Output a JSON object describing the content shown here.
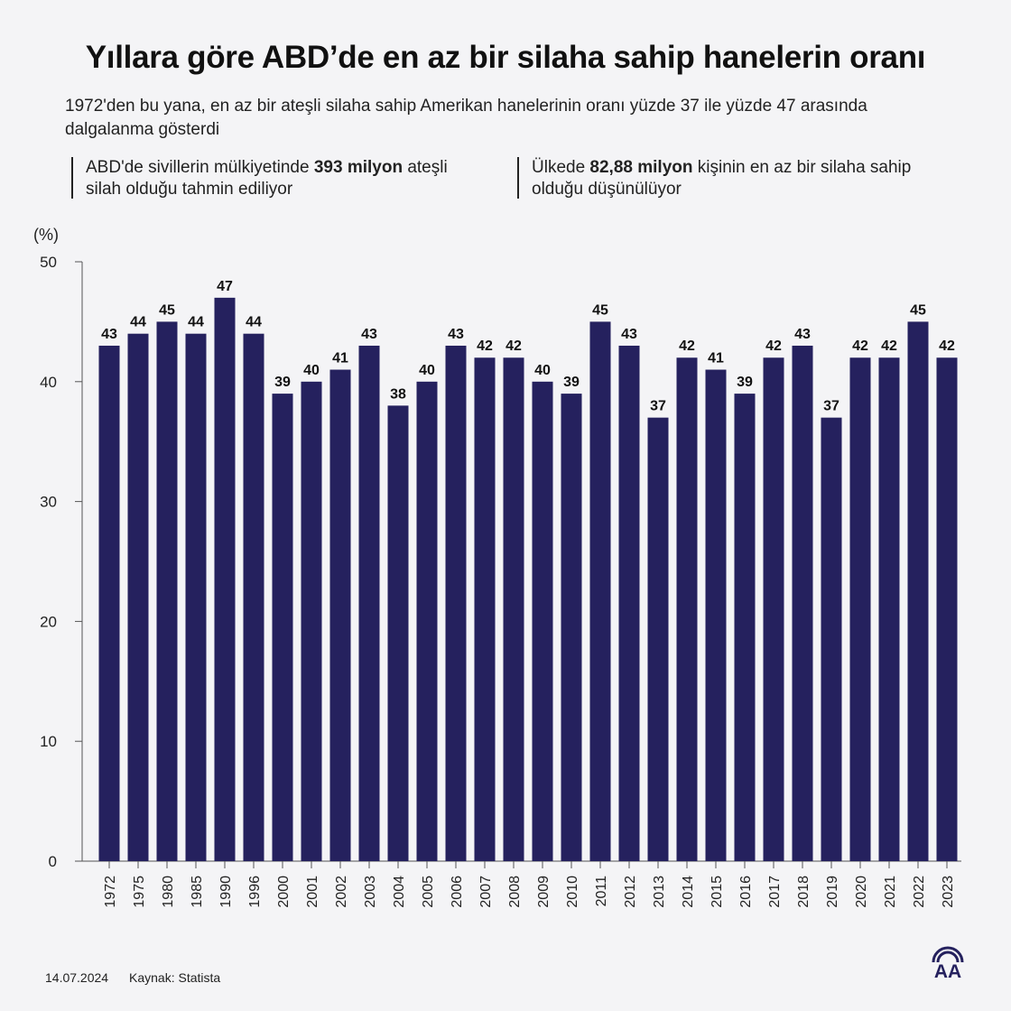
{
  "header": {
    "title": "Yıllara göre ABD’de en az bir silaha sahip hanelerin oranı",
    "subtitle": "1972'den bu yana, en az bir ateşli silaha sahip Amerikan hanelerinin oranı yüzde 37 ile yüzde 47 arasında dalgalanma gösterdi"
  },
  "facts": [
    {
      "before": "ABD'de sivillerin mülkiyetinde ",
      "bold": "393 milyon",
      "after": " ateşli silah olduğu tahmin ediliyor"
    },
    {
      "before": "Ülkede ",
      "bold": "82,88 milyon",
      "after": " kişinin en az bir silaha sahip olduğu düşünülüyor"
    }
  ],
  "footer": {
    "date": "14.07.2024",
    "source": "Kaynak: Statista",
    "logo_text": "AA"
  },
  "colors": {
    "bar": "#25215e",
    "axis": "#555555",
    "background": "#f4f4f6"
  },
  "chart_data": {
    "type": "bar",
    "title": "Yıllara göre ABD’de en az bir silaha sahip hanelerin oranı",
    "ylabel": "(%)",
    "xlabel": "",
    "ylim": [
      0,
      50
    ],
    "yticks": [
      0,
      10,
      20,
      30,
      40,
      50
    ],
    "grid": false,
    "categories": [
      "1972",
      "1975",
      "1980",
      "1985",
      "1990",
      "1996",
      "2000",
      "2001",
      "2002",
      "2003",
      "2004",
      "2005",
      "2006",
      "2007",
      "2008",
      "2009",
      "2010",
      "2011",
      "2012",
      "2013",
      "2014",
      "2015",
      "2016",
      "2017",
      "2018",
      "2019",
      "2020",
      "2021",
      "2022",
      "2023"
    ],
    "values": [
      43,
      44,
      45,
      44,
      47,
      44,
      39,
      40,
      41,
      43,
      38,
      40,
      43,
      42,
      42,
      40,
      39,
      45,
      43,
      37,
      42,
      41,
      39,
      42,
      43,
      37,
      42,
      42,
      45,
      42
    ]
  }
}
